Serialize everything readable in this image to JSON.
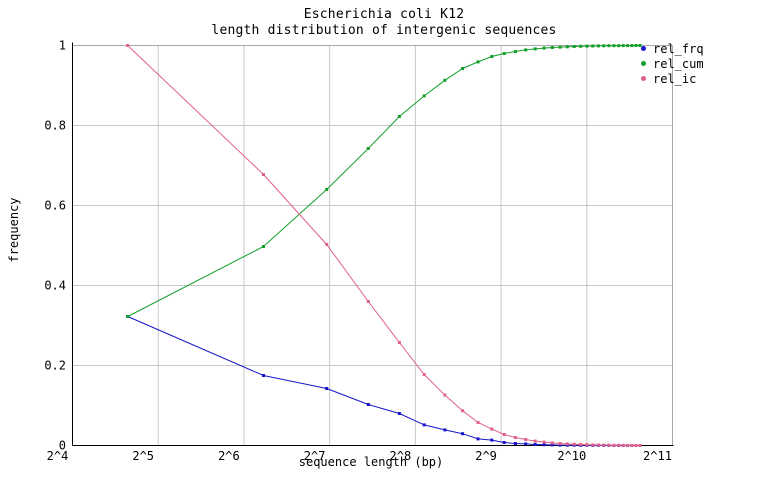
{
  "title": {
    "line1": "Escherichia coli K12",
    "line2": "length distribution of intergenic sequences"
  },
  "axes": {
    "x_label": "sequence length (bp)",
    "y_label": "frequency",
    "x_ticks": [
      {
        "label": "2^4",
        "value": 16
      },
      {
        "label": "2^5",
        "value": 32
      },
      {
        "label": "2^6",
        "value": 64
      },
      {
        "label": "2^7",
        "value": 128
      },
      {
        "label": "2^8",
        "value": 256
      },
      {
        "label": "2^9",
        "value": 512
      },
      {
        "label": "2^10",
        "value": 1024
      },
      {
        "label": "2^11",
        "value": 2048
      }
    ],
    "y_ticks": [
      {
        "label": "1",
        "value": 1.0
      },
      {
        "label": "0.8",
        "value": 0.8
      },
      {
        "label": "0.6",
        "value": 0.6
      },
      {
        "label": "0.4",
        "value": 0.4
      },
      {
        "label": "0.2",
        "value": 0.2
      },
      {
        "label": "0",
        "value": 0.0
      }
    ]
  },
  "legend": {
    "items": [
      {
        "label": "rel_frq",
        "color": "#1616c8"
      },
      {
        "label": "rel_cum",
        "color": "#12a02a"
      },
      {
        "label": "rel_ic",
        "color": "#e0608c"
      }
    ]
  },
  "colors": {
    "background": "#ffffff",
    "axis": "#000000",
    "grid": "#c9c9c9",
    "box_border": "#a8a8a8",
    "series_frq": "#1616c8",
    "series_cum": "#12a02a",
    "series_ic": "#e0608c"
  },
  "chart_data": {
    "type": "line",
    "title": "Escherichia coli K12 — length distribution of intergenic sequences",
    "xlabel": "sequence length (bp)",
    "ylabel": "frequency",
    "x_scale": "log2",
    "xlim": [
      16,
      2048
    ],
    "ylim": [
      0,
      1
    ],
    "grid": true,
    "legend_position": "top-right-outside",
    "x": [
      25,
      75,
      125,
      175,
      225,
      275,
      325,
      375,
      425,
      475,
      525,
      575,
      625,
      675,
      725,
      775,
      825,
      875,
      925,
      975,
      1025,
      1075,
      1125,
      1175,
      1225,
      1275,
      1325,
      1375,
      1425,
      1475,
      1525,
      1575
    ],
    "series": [
      {
        "name": "rel_frq",
        "color": "#1616c8",
        "values": [
          0.3225,
          0.175,
          0.1425,
          0.1025,
          0.08,
          0.0515,
          0.039,
          0.0295,
          0.0165,
          0.0135,
          0.0075,
          0.005,
          0.004,
          0.0025,
          0.002,
          0.0015,
          0.001,
          0.0008,
          0.0007,
          0.0005,
          0.0004,
          0.0003,
          0.0003,
          0.0002,
          0.0002,
          0.0001,
          0.0001,
          0.0001,
          0.0001,
          5e-05,
          5e-05,
          0.0001
        ]
      },
      {
        "name": "rel_cum",
        "color": "#12a02a",
        "values": [
          0.3225,
          0.4975,
          0.64,
          0.7425,
          0.8225,
          0.874,
          0.913,
          0.9425,
          0.959,
          0.9725,
          0.98,
          0.985,
          0.989,
          0.9915,
          0.9935,
          0.995,
          0.996,
          0.9968,
          0.9975,
          0.998,
          0.9984,
          0.9987,
          0.999,
          0.9992,
          0.9994,
          0.9995,
          0.9996,
          0.9997,
          0.9998,
          0.99985,
          0.9999,
          1.0
        ]
      },
      {
        "name": "rel_ic",
        "color": "#e0608c",
        "values": [
          1.0,
          0.6775,
          0.5025,
          0.36,
          0.2575,
          0.1775,
          0.126,
          0.087,
          0.0575,
          0.041,
          0.0275,
          0.02,
          0.015,
          0.011,
          0.0085,
          0.0065,
          0.005,
          0.004,
          0.0032,
          0.0025,
          0.002,
          0.0016,
          0.0013,
          0.001,
          0.0008,
          0.0006,
          0.0005,
          0.0004,
          0.0003,
          0.0002,
          0.00015,
          0.0001
        ]
      }
    ]
  }
}
